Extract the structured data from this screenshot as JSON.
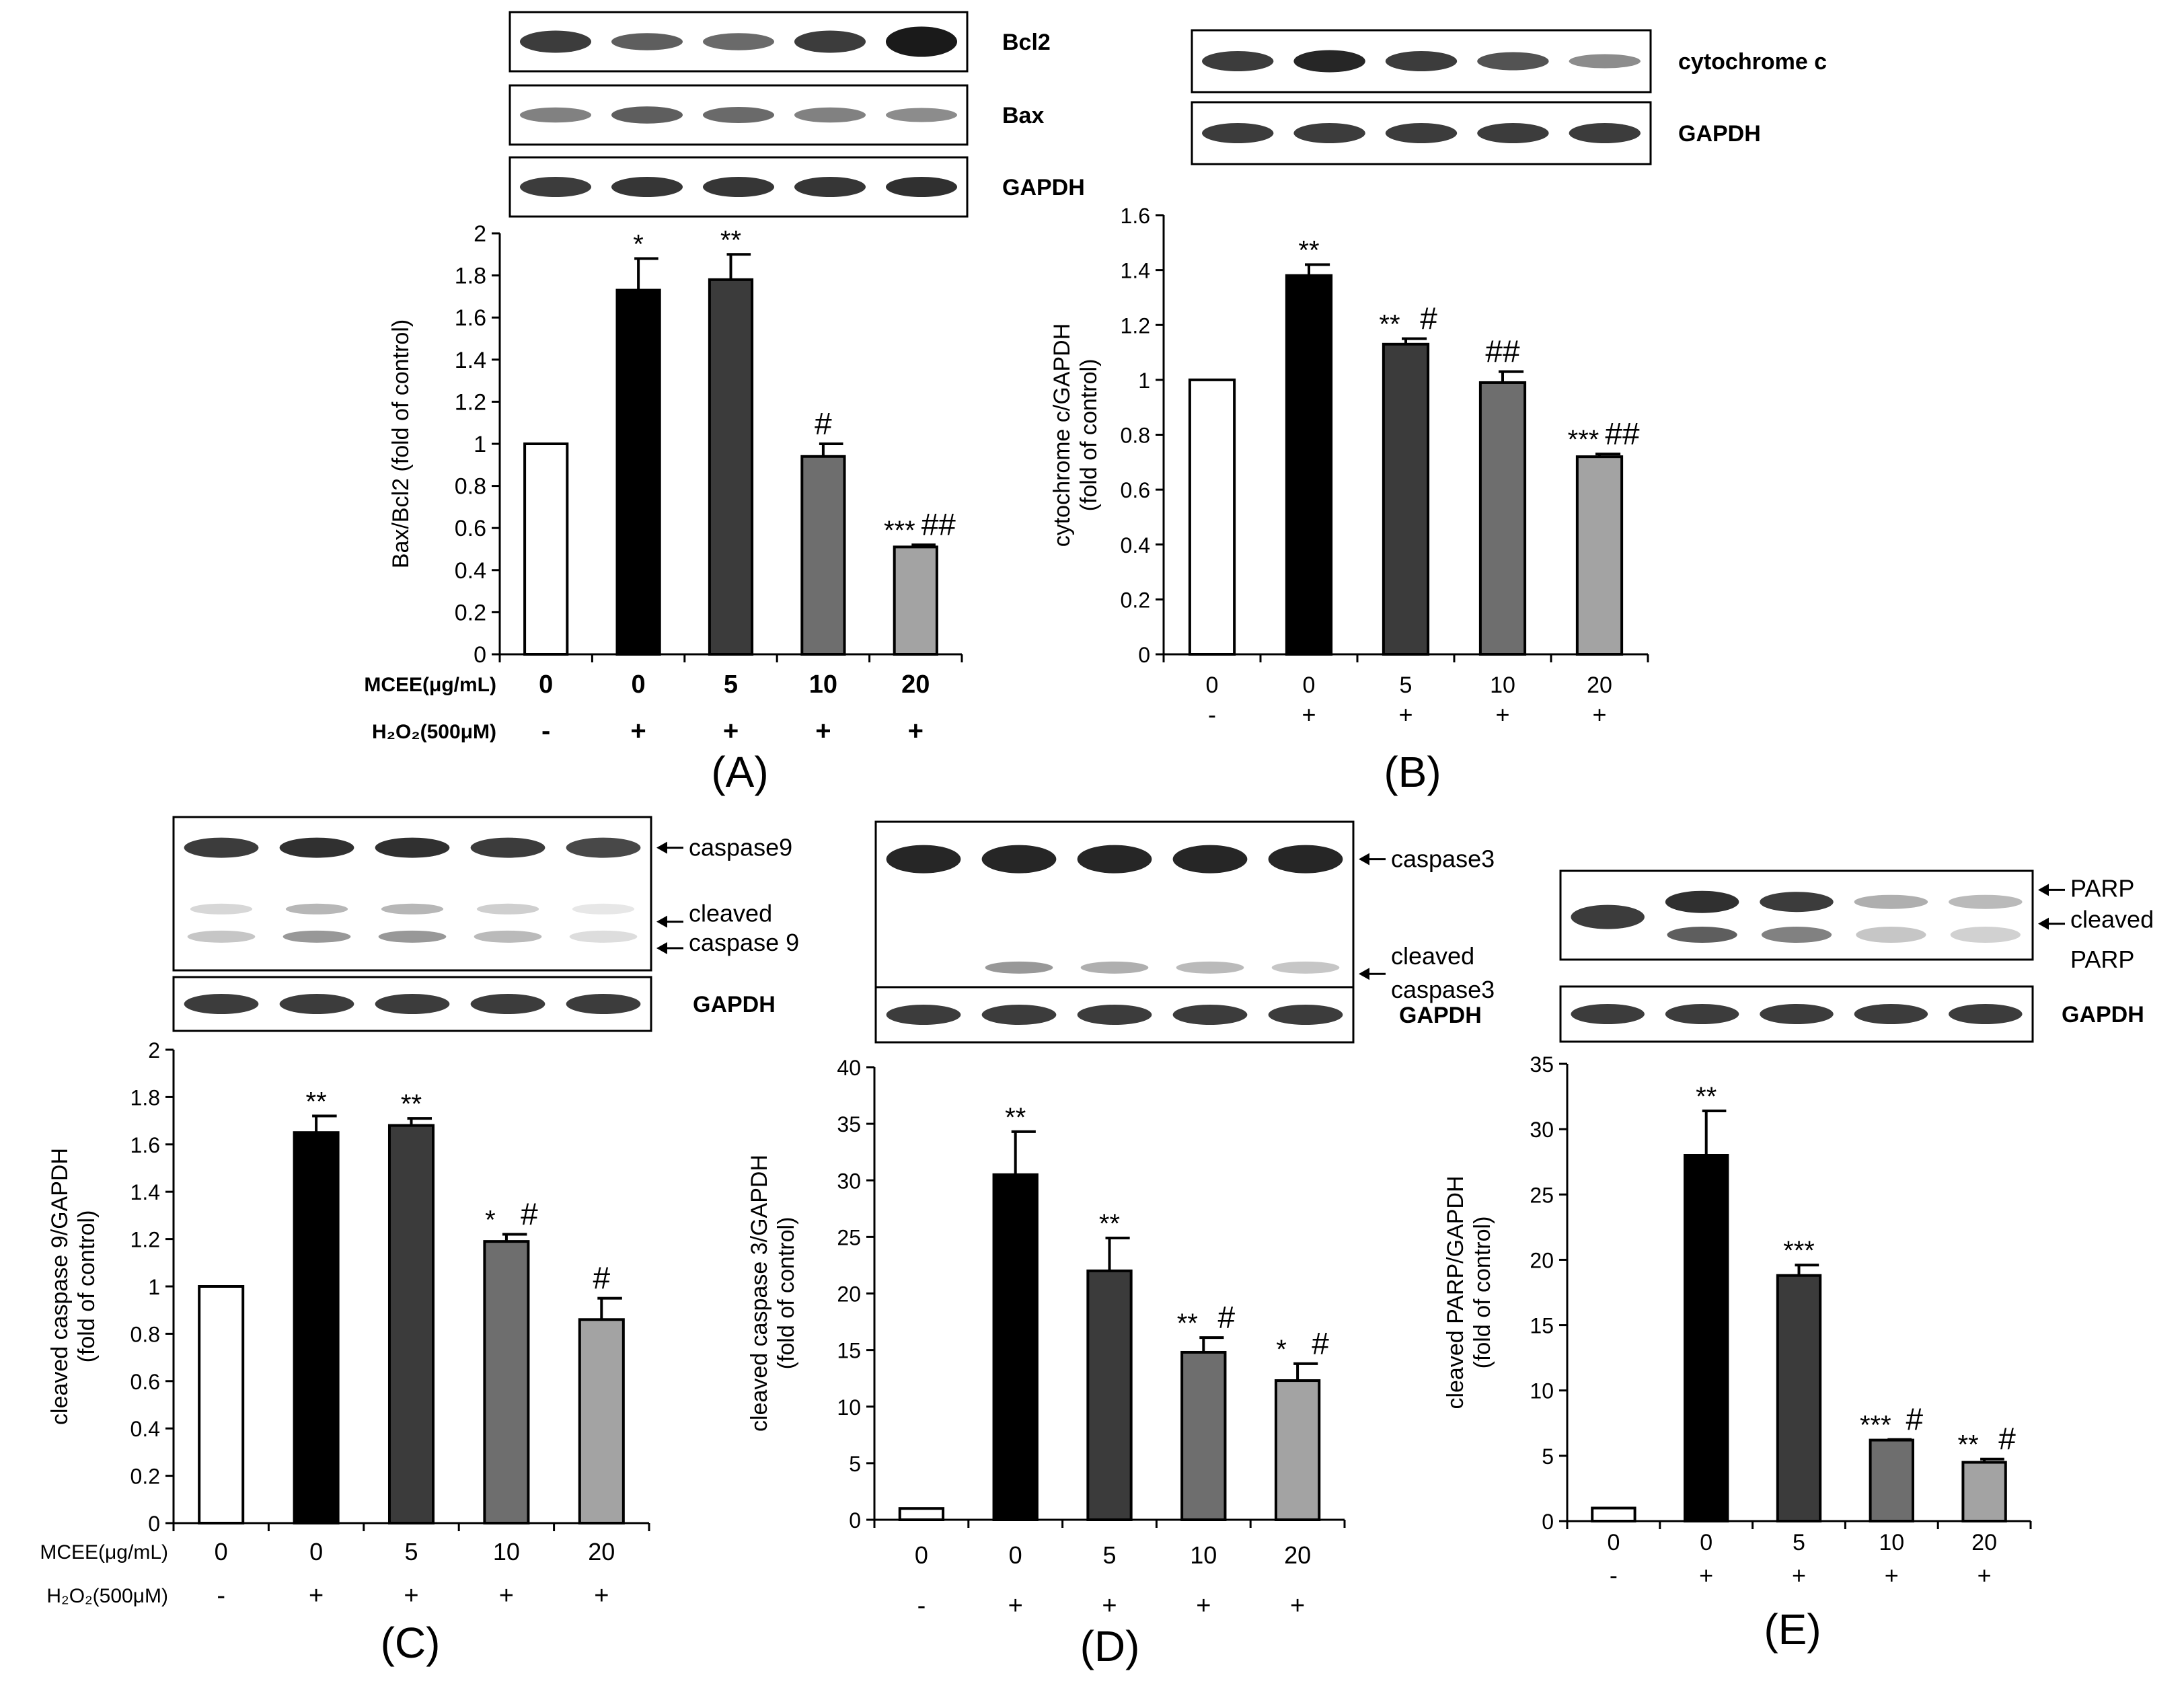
{
  "colors": {
    "control_bar": "#ffffff",
    "h2o2_bar": "#000000",
    "mcee5_bar": "#3b3b3b",
    "mcee10_bar": "#6e6e6e",
    "mcee20_bar": "#a3a3a3",
    "band": "#1a1a1a"
  },
  "chart_data": [
    {
      "panel": "A",
      "type": "bar",
      "panel_label": "(A)",
      "ylabel": "Bax/Bcl2 (fold of control)",
      "ylim": [
        0,
        2
      ],
      "yticks": [
        0,
        0.2,
        0.4,
        0.6,
        0.8,
        1,
        1.2,
        1.4,
        1.6,
        1.8,
        2
      ],
      "categories": [
        "0",
        "0",
        "5",
        "10",
        "20"
      ],
      "h2o2": [
        "-",
        "+",
        "+",
        "+",
        "+"
      ],
      "row_labels": [
        "MCEE(μg/mL)",
        "H₂O₂(500μM)"
      ],
      "values": [
        1.0,
        1.73,
        1.78,
        0.94,
        0.51
      ],
      "errors": [
        0,
        0.15,
        0.12,
        0.06,
        0.01
      ],
      "stars": [
        "",
        "*",
        "**",
        "",
        "***"
      ],
      "hashes": [
        "",
        "",
        "",
        "#",
        "##"
      ],
      "blots": [
        {
          "label": "Bcl2",
          "intensity": [
            0.85,
            0.7,
            0.65,
            0.85,
            1.0
          ],
          "thickness": [
            1.1,
            0.85,
            0.85,
            1.1,
            1.5
          ]
        },
        {
          "label": "Bax",
          "intensity": [
            0.55,
            0.7,
            0.65,
            0.55,
            0.5
          ],
          "thickness": [
            0.75,
            0.85,
            0.8,
            0.75,
            0.7
          ]
        },
        {
          "label": "GAPDH",
          "intensity": [
            0.85,
            0.88,
            0.88,
            0.88,
            0.9
          ],
          "thickness": [
            1,
            1,
            1,
            1,
            1
          ]
        }
      ]
    },
    {
      "panel": "B",
      "type": "bar",
      "panel_label": "(B)",
      "ylabel": [
        "cytochrome c/GAPDH",
        "(fold of control)"
      ],
      "ylim": [
        0,
        1.6
      ],
      "yticks": [
        0,
        0.2,
        0.4,
        0.6,
        0.8,
        1,
        1.2,
        1.4,
        1.6
      ],
      "categories": [
        "0",
        "0",
        "5",
        "10",
        "20"
      ],
      "h2o2": [
        "-",
        "+",
        "+",
        "+",
        "+"
      ],
      "row_labels": [],
      "values": [
        1.0,
        1.38,
        1.13,
        0.99,
        0.72
      ],
      "errors": [
        0,
        0.04,
        0.02,
        0.04,
        0.01
      ],
      "stars": [
        "",
        "**",
        "**",
        "",
        "***"
      ],
      "hashes": [
        "",
        "",
        "#",
        "##",
        "##"
      ],
      "blots": [
        {
          "label": "cytochrome c",
          "intensity": [
            0.85,
            0.95,
            0.85,
            0.75,
            0.5
          ],
          "thickness": [
            1.0,
            1.1,
            1.0,
            0.9,
            0.7
          ]
        },
        {
          "label": "GAPDH",
          "intensity": [
            0.85,
            0.85,
            0.85,
            0.85,
            0.85
          ],
          "thickness": [
            1,
            1,
            1,
            1,
            1
          ]
        }
      ]
    },
    {
      "panel": "C",
      "type": "bar",
      "panel_label": "(C)",
      "ylabel": [
        "cleaved caspase 9/GAPDH",
        "(fold of control)"
      ],
      "ylim": [
        0,
        2
      ],
      "yticks": [
        0,
        0.2,
        0.4,
        0.6,
        0.8,
        1,
        1.2,
        1.4,
        1.6,
        1.8,
        2
      ],
      "categories": [
        "0",
        "0",
        "5",
        "10",
        "20"
      ],
      "h2o2": [
        "-",
        "+",
        "+",
        "+",
        "+"
      ],
      "row_labels": [
        "MCEE(μg/mL)",
        "H₂O₂(500μM)"
      ],
      "values": [
        1.0,
        1.65,
        1.68,
        1.19,
        0.86
      ],
      "errors": [
        0,
        0.07,
        0.03,
        0.03,
        0.09
      ],
      "stars": [
        "",
        "**",
        "**",
        "*",
        ""
      ],
      "hashes": [
        "",
        "",
        "",
        "#",
        "#"
      ],
      "blots": [
        {
          "label": "caspase9",
          "arrow_labels": [
            "caspase9",
            "cleaved",
            "caspase 9"
          ],
          "intensity": [
            0.85,
            0.9,
            0.9,
            0.85,
            0.8
          ],
          "thickness": [
            1,
            1,
            1,
            1,
            1
          ],
          "cleaved": [
            0.25,
            0.45,
            0.45,
            0.3,
            0.15
          ]
        },
        {
          "label": "GAPDH",
          "intensity": [
            0.85,
            0.85,
            0.85,
            0.85,
            0.85
          ],
          "thickness": [
            1,
            1,
            1,
            1,
            1
          ]
        }
      ]
    },
    {
      "panel": "D",
      "type": "bar",
      "panel_label": "(D)",
      "ylabel": [
        "cleaved caspase 3/GAPDH",
        "(fold of control)"
      ],
      "ylim": [
        0,
        40
      ],
      "yticks": [
        0,
        5,
        10,
        15,
        20,
        25,
        30,
        35,
        40
      ],
      "categories": [
        "0",
        "0",
        "5",
        "10",
        "20"
      ],
      "h2o2": [
        "-",
        "+",
        "+",
        "+",
        "+"
      ],
      "row_labels": [],
      "values": [
        1.0,
        30.5,
        22.0,
        14.8,
        12.3
      ],
      "errors": [
        0,
        3.8,
        2.9,
        1.3,
        1.5
      ],
      "stars": [
        "",
        "**",
        "**",
        "**",
        "*"
      ],
      "hashes": [
        "",
        "",
        "",
        "#",
        "#"
      ],
      "blots": [
        {
          "label": "caspase3",
          "arrow_labels": [
            "caspase3",
            "cleaved",
            "caspase3"
          ],
          "intensity": [
            0.95,
            0.95,
            0.95,
            0.95,
            0.95
          ],
          "thickness": [
            1.4,
            1.4,
            1.4,
            1.4,
            1.4
          ],
          "cleaved": [
            0.0,
            0.45,
            0.35,
            0.3,
            0.25
          ]
        },
        {
          "label": "GAPDH",
          "intensity": [
            0.85,
            0.85,
            0.85,
            0.85,
            0.85
          ],
          "thickness": [
            1,
            1,
            1,
            1,
            1
          ]
        }
      ]
    },
    {
      "panel": "E",
      "type": "bar",
      "panel_label": "(E)",
      "ylabel": [
        "cleaved PARP/GAPDH",
        "(fold of control)"
      ],
      "ylim": [
        0,
        35
      ],
      "yticks": [
        0,
        5,
        10,
        15,
        20,
        25,
        30,
        35
      ],
      "categories": [
        "0",
        "0",
        "5",
        "10",
        "20"
      ],
      "h2o2": [
        "-",
        "+",
        "+",
        "+",
        "+"
      ],
      "row_labels": [],
      "values": [
        1.0,
        28.0,
        18.8,
        6.2,
        4.5
      ],
      "errors": [
        0,
        3.4,
        0.8,
        0.05,
        0.25
      ],
      "stars": [
        "",
        "**",
        "***",
        "***",
        "**"
      ],
      "hashes": [
        "",
        "",
        "",
        "#",
        "#"
      ],
      "blots": [
        {
          "label": "PARP",
          "arrow_labels": [
            "PARP",
            "cleaved",
            "PARP"
          ],
          "intensity": [
            0.0,
            0.9,
            0.85,
            0.35,
            0.3
          ],
          "thickness": [
            1,
            1.1,
            1,
            0.7,
            0.7
          ],
          "cleaved_upper": [
            0.85,
            0.7,
            0.55,
            0.25,
            0.2
          ]
        },
        {
          "label": "GAPDH",
          "intensity": [
            0.85,
            0.85,
            0.85,
            0.85,
            0.85
          ],
          "thickness": [
            1,
            1,
            1,
            1,
            1
          ]
        }
      ]
    }
  ]
}
